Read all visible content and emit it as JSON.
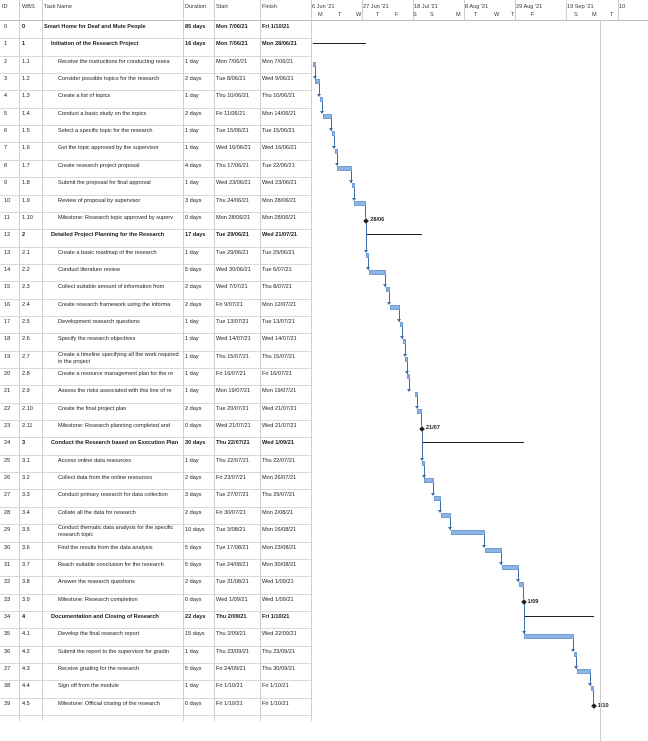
{
  "columns": {
    "id": "ID",
    "wbs": "WBS",
    "name": "Task Name",
    "duration": "Duration",
    "start": "Start",
    "finish": "Finish"
  },
  "timeline": {
    "periods": [
      "6 Jun '21",
      "27 Jun '21",
      "18 Jul '21",
      "8 Aug '21",
      "29 Aug '21",
      "19 Sep '21",
      "10"
    ],
    "days": [
      "M",
      "T",
      "W",
      "T",
      "F",
      "S",
      "S",
      "M",
      "T",
      "W",
      "T",
      "F",
      "S",
      "M",
      "T"
    ]
  },
  "tasks": [
    {
      "id": "0",
      "wbs": "0",
      "name": "Smart Home for Deaf and Mute People",
      "duration": "85 days",
      "start": "Mon 7/06/21",
      "finish": "Fri 1/10/21",
      "level": 0,
      "summary": true,
      "milestone": false,
      "start_day": 0,
      "end_day": 116
    },
    {
      "id": "1",
      "wbs": "1",
      "name": "Initiation of the Research Project",
      "duration": "16 days",
      "start": "Mon 7/06/21",
      "finish": "Mon 28/06/21",
      "level": 1,
      "summary": true,
      "milestone": false,
      "start_day": 0,
      "end_day": 22
    },
    {
      "id": "2",
      "wbs": "1.1",
      "name": "Receive the instructions for conducting resea",
      "duration": "1 day",
      "start": "Mon 7/06/21",
      "finish": "Mon 7/06/21",
      "level": 2,
      "summary": false,
      "milestone": false,
      "start_day": 0,
      "end_day": 1
    },
    {
      "id": "3",
      "wbs": "1.2",
      "name": "Consider possible topics for the research",
      "duration": "2 days",
      "start": "Tue 8/06/21",
      "finish": "Wed 9/06/21",
      "level": 2,
      "summary": false,
      "milestone": false,
      "start_day": 1,
      "end_day": 3
    },
    {
      "id": "4",
      "wbs": "1.3",
      "name": "Create a list of topics",
      "duration": "1 day",
      "start": "Thu 10/06/21",
      "finish": "Thu 10/06/21",
      "level": 2,
      "summary": false,
      "milestone": false,
      "start_day": 3,
      "end_day": 4
    },
    {
      "id": "5",
      "wbs": "1.4",
      "name": "Conduct a basic study on the topics",
      "duration": "2 days",
      "start": "Fri 11/06/21",
      "finish": "Mon 14/06/21",
      "level": 2,
      "summary": false,
      "milestone": false,
      "start_day": 4,
      "end_day": 8
    },
    {
      "id": "6",
      "wbs": "1.5",
      "name": "Select a specific topic for the research",
      "duration": "1 day",
      "start": "Tue 15/06/21",
      "finish": "Tue 15/06/21",
      "level": 2,
      "summary": false,
      "milestone": false,
      "start_day": 8,
      "end_day": 9
    },
    {
      "id": "7",
      "wbs": "1.6",
      "name": "Get the topic approved by the supervisor",
      "duration": "1 day",
      "start": "Wed 16/06/21",
      "finish": "Wed 16/06/21",
      "level": 2,
      "summary": false,
      "milestone": false,
      "start_day": 9,
      "end_day": 10
    },
    {
      "id": "8",
      "wbs": "1.7",
      "name": "Create research project proposal",
      "duration": "4 days",
      "start": "Thu 17/06/21",
      "finish": "Tue 22/06/21",
      "level": 2,
      "summary": false,
      "milestone": false,
      "start_day": 10,
      "end_day": 16
    },
    {
      "id": "9",
      "wbs": "1.8",
      "name": "Submit the proposal for final approval",
      "duration": "1 day",
      "start": "Wed 23/06/21",
      "finish": "Wed 23/06/21",
      "level": 2,
      "summary": false,
      "milestone": false,
      "start_day": 16,
      "end_day": 17
    },
    {
      "id": "10",
      "wbs": "1.9",
      "name": "Review of proposal by supervisor",
      "duration": "3 days",
      "start": "Thu 24/06/21",
      "finish": "Mon 28/06/21",
      "level": 2,
      "summary": false,
      "milestone": false,
      "start_day": 17,
      "end_day": 22
    },
    {
      "id": "11",
      "wbs": "1.10",
      "name": "Milestone: Research topic approved by superv",
      "duration": "0 days",
      "start": "Mon 28/06/21",
      "finish": "Mon 28/06/21",
      "level": 2,
      "summary": false,
      "milestone": true,
      "milestone_label": "28/06",
      "start_day": 22,
      "end_day": 22
    },
    {
      "id": "12",
      "wbs": "2",
      "name": "Detailed Project Planning for the Research",
      "duration": "17 days",
      "start": "Tue 29/06/21",
      "finish": "Wed 21/07/21",
      "level": 1,
      "summary": true,
      "milestone": false,
      "start_day": 22,
      "end_day": 45
    },
    {
      "id": "13",
      "wbs": "2.1",
      "name": "Create a basic roadmap of the research",
      "duration": "1 day",
      "start": "Tue 29/06/21",
      "finish": "Tue 29/06/21",
      "level": 2,
      "summary": false,
      "milestone": false,
      "start_day": 22,
      "end_day": 23
    },
    {
      "id": "14",
      "wbs": "2.2",
      "name": "Conduct literature review",
      "duration": "5 days",
      "start": "Wed 30/06/21",
      "finish": "Tue 6/07/21",
      "level": 2,
      "summary": false,
      "milestone": false,
      "start_day": 23,
      "end_day": 30
    },
    {
      "id": "15",
      "wbs": "2.3",
      "name": "Collect suitable amount of information from",
      "duration": "2 days",
      "start": "Wed 7/07/21",
      "finish": "Thu 8/07/21",
      "level": 2,
      "summary": false,
      "milestone": false,
      "start_day": 30,
      "end_day": 32
    },
    {
      "id": "16",
      "wbs": "2.4",
      "name": "Create research framework using the informa",
      "duration": "2 days",
      "start": "Fri 9/07/21",
      "finish": "Mon 12/07/21",
      "level": 2,
      "summary": false,
      "milestone": false,
      "start_day": 32,
      "end_day": 36
    },
    {
      "id": "17",
      "wbs": "2.5",
      "name": "Development research questions",
      "duration": "1 day",
      "start": "Tue 13/07/21",
      "finish": "Tue 13/07/21",
      "level": 2,
      "summary": false,
      "milestone": false,
      "start_day": 36,
      "end_day": 37
    },
    {
      "id": "18",
      "wbs": "2.6",
      "name": "Specify the research objectives",
      "duration": "1 day",
      "start": "Wed 14/07/21",
      "finish": "Wed 14/07/21",
      "level": 2,
      "summary": false,
      "milestone": false,
      "start_day": 37,
      "end_day": 38
    },
    {
      "id": "19",
      "wbs": "2.7",
      "name": "Create a timeline specifying all the work required in the project",
      "duration": "1 day",
      "start": "Thu 15/07/21",
      "finish": "Thu 15/07/21",
      "level": 2,
      "summary": false,
      "milestone": false,
      "wrap": true,
      "start_day": 38,
      "end_day": 39
    },
    {
      "id": "20",
      "wbs": "2.8",
      "name": "Create a resource management plan for the re",
      "duration": "1 day",
      "start": "Fri 16/07/21",
      "finish": "Fri 16/07/21",
      "level": 2,
      "summary": false,
      "milestone": false,
      "start_day": 39,
      "end_day": 40
    },
    {
      "id": "21",
      "wbs": "2.9",
      "name": "Assess the risks associated with this line of re",
      "duration": "1 day",
      "start": "Mon 19/07/21",
      "finish": "Mon 19/07/21",
      "level": 2,
      "summary": false,
      "milestone": false,
      "start_day": 42,
      "end_day": 43
    },
    {
      "id": "22",
      "wbs": "2.10",
      "name": "Create the final project plan",
      "duration": "2 days",
      "start": "Tue 20/07/21",
      "finish": "Wed 21/07/21",
      "level": 2,
      "summary": false,
      "milestone": false,
      "start_day": 43,
      "end_day": 45
    },
    {
      "id": "23",
      "wbs": "2.11",
      "name": "Milestone: Research planning completed and",
      "duration": "0 days",
      "start": "Wed 21/07/21",
      "finish": "Wed 21/07/21",
      "level": 2,
      "summary": false,
      "milestone": true,
      "milestone_label": "21/07",
      "start_day": 45,
      "end_day": 45
    },
    {
      "id": "24",
      "wbs": "3",
      "name": "Conduct the Research based on Execution Plan",
      "duration": "30 days",
      "start": "Thu 22/07/21",
      "finish": "Wed 1/09/21",
      "level": 1,
      "summary": true,
      "milestone": false,
      "start_day": 45,
      "end_day": 87
    },
    {
      "id": "25",
      "wbs": "3.1",
      "name": "Access online data resources",
      "duration": "1 day",
      "start": "Thu 22/07/21",
      "finish": "Thu 22/07/21",
      "level": 2,
      "summary": false,
      "milestone": false,
      "start_day": 45,
      "end_day": 46
    },
    {
      "id": "26",
      "wbs": "3.2",
      "name": "Collect data from the online resources",
      "duration": "2 days",
      "start": "Fri 23/07/21",
      "finish": "Mon 26/07/21",
      "level": 2,
      "summary": false,
      "milestone": false,
      "start_day": 46,
      "end_day": 50
    },
    {
      "id": "27",
      "wbs": "3.3",
      "name": "Conduct primary research for data collection",
      "duration": "3 days",
      "start": "Tue 27/07/21",
      "finish": "Thu 29/07/21",
      "level": 2,
      "summary": false,
      "milestone": false,
      "start_day": 50,
      "end_day": 53
    },
    {
      "id": "28",
      "wbs": "3.4",
      "name": "Collate all the data for research",
      "duration": "2 days",
      "start": "Fri 30/07/21",
      "finish": "Mon 2/08/21",
      "level": 2,
      "summary": false,
      "milestone": false,
      "start_day": 53,
      "end_day": 57
    },
    {
      "id": "29",
      "wbs": "3.5",
      "name": "Conduct thematic data analysis for the specific research topic",
      "duration": "10 days",
      "start": "Tue 3/08/21",
      "finish": "Mon 16/08/21",
      "level": 2,
      "summary": false,
      "milestone": false,
      "wrap": true,
      "start_day": 57,
      "end_day": 71
    },
    {
      "id": "30",
      "wbs": "3.6",
      "name": "Find the results from the data analysis",
      "duration": "5 days",
      "start": "Tue 17/08/21",
      "finish": "Mon 23/08/21",
      "level": 2,
      "summary": false,
      "milestone": false,
      "start_day": 71,
      "end_day": 78
    },
    {
      "id": "31",
      "wbs": "3.7",
      "name": "Reach suitable conclusion for the research",
      "duration": "5 days",
      "start": "Tue 24/08/21",
      "finish": "Mon 30/08/21",
      "level": 2,
      "summary": false,
      "milestone": false,
      "start_day": 78,
      "end_day": 85
    },
    {
      "id": "32",
      "wbs": "3.8",
      "name": "Answer the research questions",
      "duration": "2 days",
      "start": "Tue 31/08/21",
      "finish": "Wed 1/09/21",
      "level": 2,
      "summary": false,
      "milestone": false,
      "start_day": 85,
      "end_day": 87
    },
    {
      "id": "33",
      "wbs": "3.9",
      "name": "Milestone: Research completion",
      "duration": "0 days",
      "start": "Wed 1/09/21",
      "finish": "Wed 1/09/21",
      "level": 2,
      "summary": false,
      "milestone": true,
      "milestone_label": "1/09",
      "start_day": 87,
      "end_day": 87
    },
    {
      "id": "34",
      "wbs": "4",
      "name": "Documentation and Closing of Research",
      "duration": "22 days",
      "start": "Thu 2/09/21",
      "finish": "Fri 1/10/21",
      "level": 1,
      "summary": true,
      "milestone": false,
      "start_day": 87,
      "end_day": 116
    },
    {
      "id": "35",
      "wbs": "4.1",
      "name": "Develop the final research report",
      "duration": "15 days",
      "start": "Thu 2/09/21",
      "finish": "Wed 22/09/21",
      "level": 2,
      "summary": false,
      "milestone": false,
      "start_day": 87,
      "end_day": 108
    },
    {
      "id": "36",
      "wbs": "4.2",
      "name": "Submit the report to the supervisor for gradin",
      "duration": "1 day",
      "start": "Thu 23/09/21",
      "finish": "Thu 23/09/21",
      "level": 2,
      "summary": false,
      "milestone": false,
      "start_day": 108,
      "end_day": 109
    },
    {
      "id": "37",
      "wbs": "4.3",
      "name": "Receive grading for the research",
      "duration": "5 days",
      "start": "Fri 24/09/21",
      "finish": "Thu 30/09/21",
      "level": 2,
      "summary": false,
      "milestone": false,
      "start_day": 109,
      "end_day": 115
    },
    {
      "id": "38",
      "wbs": "4.4",
      "name": "Sign off from the module",
      "duration": "1 day",
      "start": "Fri 1/10/21",
      "finish": "Fri 1/10/21",
      "level": 2,
      "summary": false,
      "milestone": false,
      "start_day": 115,
      "end_day": 116
    },
    {
      "id": "39",
      "wbs": "4.5",
      "name": "Milestone: Official closing of the research",
      "duration": "0 days",
      "start": "Fri 1/10/21",
      "finish": "Fri 1/10/21",
      "level": 2,
      "summary": false,
      "milestone": true,
      "milestone_label": "1/10",
      "start_day": 116,
      "end_day": 116
    }
  ]
}
